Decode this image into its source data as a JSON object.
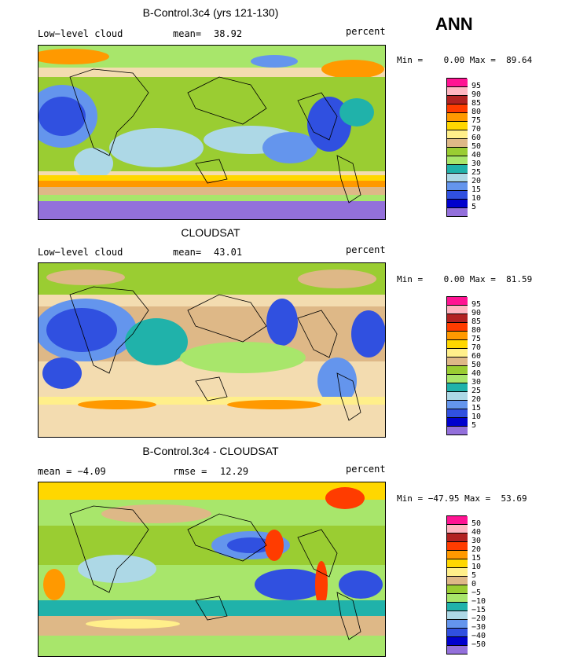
{
  "season": "ANN",
  "units": "percent",
  "colors": [
    "#ff1493",
    "#ffb6c1",
    "#b22222",
    "#ff3c00",
    "#ff9900",
    "#ffd700",
    "#ffef8a",
    "#deb887",
    "#9acd32",
    "#a8e66b",
    "#20b2aa",
    "#add8e6",
    "#6495ed",
    "#3050e0",
    "#0000cd",
    "#9370db"
  ],
  "panels": [
    {
      "title": "B-Control.3c4 (yrs 121-130)",
      "left_label": "Low−level cloud",
      "stat_label": "mean=",
      "stat_value": "38.92",
      "units": "percent",
      "minmax": "Min =    0.00 Max =  89.64",
      "levels": [
        "95",
        "90",
        "85",
        "80",
        "75",
        "70",
        "60",
        "50",
        "40",
        "30",
        "25",
        "20",
        "15",
        "10",
        "5"
      ]
    },
    {
      "title": "CLOUDSAT",
      "left_label": "Low−level cloud",
      "stat_label": "mean=",
      "stat_value": "43.01",
      "units": "percent",
      "minmax": "Min =    0.00 Max =  81.59",
      "levels": [
        "95",
        "90",
        "85",
        "80",
        "75",
        "70",
        "60",
        "50",
        "40",
        "30",
        "25",
        "20",
        "15",
        "10",
        "5"
      ]
    },
    {
      "title": "B-Control.3c4 - CLOUDSAT",
      "left_label": "mean =   −4.09",
      "stat_label": "rmse =",
      "stat_value": "12.29",
      "units": "percent",
      "minmax": "Min = −47.95 Max =  53.69",
      "levels": [
        "50",
        "40",
        "30",
        "20",
        "15",
        "10",
        "5",
        "0",
        "−5",
        "−10",
        "−15",
        "−20",
        "−30",
        "−40",
        "−50"
      ]
    }
  ]
}
